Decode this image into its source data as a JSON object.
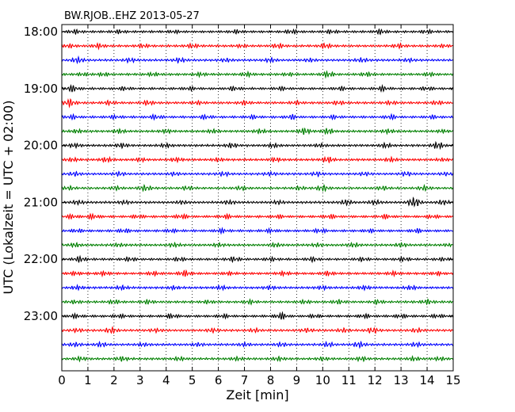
{
  "chart_data": {
    "type": "line",
    "title": "BW.RJOB..EHZ 2013-05-27",
    "xlabel": "Zeit  [min]",
    "ylabel": "UTC (Lokalzeit = UTC + 02:00)",
    "xlim": [
      0,
      15
    ],
    "x_ticks": [
      "0",
      "1",
      "2",
      "3",
      "4",
      "5",
      "6",
      "7",
      "8",
      "9",
      "10",
      "11",
      "12",
      "13",
      "14",
      "15"
    ],
    "y_tick_labels": [
      "18:00",
      "19:00",
      "20:00",
      "21:00",
      "22:00",
      "23:00"
    ],
    "grid": "vertical dotted",
    "series_colors": [
      "#000000",
      "#ff0000",
      "#0000ff",
      "#008000"
    ],
    "traces_per_hour": 4,
    "trace_count": 24,
    "trace_start_times": [
      "18:00",
      "18:15",
      "18:30",
      "18:45",
      "19:00",
      "19:15",
      "19:30",
      "19:45",
      "20:00",
      "20:15",
      "20:30",
      "20:45",
      "21:00",
      "21:15",
      "21:30",
      "21:45",
      "22:00",
      "22:15",
      "22:30",
      "22:45",
      "23:00",
      "23:15",
      "23:30",
      "23:45"
    ],
    "bursts": [
      [
        [
          0.5,
          0.6
        ],
        [
          2.2,
          0.5
        ],
        [
          4.3,
          0.4
        ],
        [
          6.7,
          0.5
        ],
        [
          8.8,
          0.6
        ],
        [
          10.3,
          0.5
        ],
        [
          12.2,
          0.7
        ],
        [
          14.0,
          0.5
        ]
      ],
      [
        [
          0.3,
          0.5
        ],
        [
          1.4,
          0.7
        ],
        [
          3.1,
          0.5
        ],
        [
          5.0,
          0.6
        ],
        [
          6.9,
          0.4
        ],
        [
          8.3,
          0.7
        ],
        [
          10.1,
          0.8
        ],
        [
          12.9,
          0.6
        ],
        [
          14.6,
          0.4
        ]
      ],
      [
        [
          0.6,
          0.9
        ],
        [
          2.6,
          0.6
        ],
        [
          4.5,
          0.7
        ],
        [
          6.3,
          0.5
        ],
        [
          8.0,
          0.6
        ],
        [
          9.5,
          0.5
        ],
        [
          11.5,
          0.6
        ],
        [
          13.3,
          0.5
        ]
      ],
      [
        [
          0.8,
          0.4
        ],
        [
          1.6,
          0.5
        ],
        [
          3.5,
          0.5
        ],
        [
          5.3,
          0.5
        ],
        [
          7.1,
          0.6
        ],
        [
          8.7,
          0.4
        ],
        [
          10.2,
          0.9
        ],
        [
          11.7,
          0.6
        ],
        [
          14.1,
          0.5
        ]
      ],
      [
        [
          0.4,
          1.0
        ],
        [
          2.4,
          0.5
        ],
        [
          4.9,
          0.5
        ],
        [
          6.6,
          0.6
        ],
        [
          8.4,
          0.5
        ],
        [
          10.7,
          0.5
        ],
        [
          12.3,
          0.7
        ],
        [
          14.0,
          0.5
        ]
      ],
      [
        [
          0.3,
          1.2
        ],
        [
          1.8,
          0.6
        ],
        [
          3.3,
          0.7
        ],
        [
          5.2,
          0.5
        ],
        [
          7.0,
          0.6
        ],
        [
          9.0,
          0.5
        ],
        [
          10.6,
          0.6
        ],
        [
          12.6,
          0.5
        ],
        [
          14.4,
          0.6
        ]
      ],
      [
        [
          0.4,
          0.6
        ],
        [
          2.0,
          0.5
        ],
        [
          3.6,
          0.7
        ],
        [
          5.5,
          0.6
        ],
        [
          7.3,
          0.5
        ],
        [
          8.8,
          0.7
        ],
        [
          10.4,
          0.5
        ],
        [
          12.6,
          0.7
        ],
        [
          14.2,
          0.5
        ]
      ],
      [
        [
          0.6,
          0.5
        ],
        [
          2.2,
          0.6
        ],
        [
          4.0,
          0.5
        ],
        [
          5.8,
          0.5
        ],
        [
          7.6,
          0.6
        ],
        [
          9.3,
          1.0
        ],
        [
          10.2,
          0.9
        ],
        [
          12.5,
          0.6
        ],
        [
          14.6,
          0.4
        ]
      ],
      [
        [
          0.5,
          0.6
        ],
        [
          2.3,
          0.7
        ],
        [
          4.0,
          0.6
        ],
        [
          6.5,
          0.7
        ],
        [
          8.1,
          0.6
        ],
        [
          9.9,
          0.5
        ],
        [
          12.4,
          0.7
        ],
        [
          14.4,
          1.1
        ]
      ],
      [
        [
          0.4,
          0.5
        ],
        [
          1.7,
          0.7
        ],
        [
          3.0,
          0.5
        ],
        [
          4.4,
          0.6
        ],
        [
          6.0,
          0.5
        ],
        [
          8.2,
          0.6
        ],
        [
          10.2,
          0.9
        ],
        [
          12.6,
          0.6
        ],
        [
          14.6,
          0.4
        ]
      ],
      [
        [
          0.5,
          0.6
        ],
        [
          2.2,
          0.6
        ],
        [
          4.3,
          0.5
        ],
        [
          6.2,
          0.6
        ],
        [
          8.0,
          0.5
        ],
        [
          9.8,
          0.6
        ],
        [
          11.6,
          0.5
        ],
        [
          13.2,
          0.6
        ],
        [
          14.7,
          0.4
        ]
      ],
      [
        [
          0.3,
          0.5
        ],
        [
          2.1,
          0.5
        ],
        [
          3.2,
          0.9
        ],
        [
          4.8,
          0.5
        ],
        [
          6.9,
          0.6
        ],
        [
          9.1,
          0.5
        ],
        [
          10.0,
          0.9
        ],
        [
          12.3,
          0.6
        ],
        [
          13.9,
          0.7
        ]
      ],
      [
        [
          0.6,
          0.6
        ],
        [
          2.4,
          0.5
        ],
        [
          4.6,
          0.5
        ],
        [
          6.4,
          0.6
        ],
        [
          8.3,
          0.5
        ],
        [
          10.9,
          0.8
        ],
        [
          12.0,
          0.7
        ],
        [
          13.5,
          1.6
        ],
        [
          14.6,
          0.7
        ]
      ],
      [
        [
          0.4,
          0.6
        ],
        [
          1.2,
          0.8
        ],
        [
          2.9,
          0.5
        ],
        [
          4.6,
          0.7
        ],
        [
          6.3,
          0.6
        ],
        [
          8.3,
          0.5
        ],
        [
          10.3,
          0.6
        ],
        [
          12.4,
          0.6
        ],
        [
          14.2,
          0.5
        ]
      ],
      [
        [
          0.6,
          0.5
        ],
        [
          2.4,
          0.6
        ],
        [
          4.2,
          0.5
        ],
        [
          6.1,
          0.6
        ],
        [
          8.0,
          0.5
        ],
        [
          9.9,
          0.6
        ],
        [
          11.8,
          0.5
        ],
        [
          13.6,
          0.6
        ]
      ],
      [
        [
          0.5,
          0.6
        ],
        [
          2.2,
          0.5
        ],
        [
          4.3,
          0.6
        ],
        [
          6.0,
          0.5
        ],
        [
          8.2,
          0.6
        ],
        [
          9.8,
          0.5
        ],
        [
          11.2,
          0.6
        ],
        [
          13.0,
          0.6
        ],
        [
          14.8,
          0.3
        ]
      ],
      [
        [
          0.7,
          0.9
        ],
        [
          2.6,
          0.6
        ],
        [
          4.5,
          0.6
        ],
        [
          6.6,
          0.7
        ],
        [
          8.0,
          0.5
        ],
        [
          9.6,
          0.6
        ],
        [
          11.5,
          0.5
        ],
        [
          13.1,
          0.6
        ],
        [
          14.6,
          0.4
        ]
      ],
      [
        [
          0.5,
          0.5
        ],
        [
          1.6,
          0.6
        ],
        [
          3.5,
          0.6
        ],
        [
          4.7,
          0.9
        ],
        [
          6.4,
          0.5
        ],
        [
          8.5,
          0.6
        ],
        [
          10.2,
          0.6
        ],
        [
          12.7,
          0.6
        ],
        [
          14.4,
          0.5
        ]
      ],
      [
        [
          0.6,
          0.6
        ],
        [
          2.3,
          0.6
        ],
        [
          4.3,
          0.5
        ],
        [
          6.1,
          0.6
        ],
        [
          8.0,
          0.5
        ],
        [
          10.0,
          0.5
        ],
        [
          11.6,
          0.6
        ],
        [
          13.4,
          0.6
        ]
      ],
      [
        [
          0.5,
          0.5
        ],
        [
          2.0,
          0.6
        ],
        [
          3.3,
          0.6
        ],
        [
          5.6,
          0.5
        ],
        [
          7.2,
          0.6
        ],
        [
          9.3,
          0.5
        ],
        [
          10.6,
          0.6
        ],
        [
          12.1,
          0.6
        ],
        [
          14.0,
          0.7
        ]
      ],
      [
        [
          0.5,
          0.6
        ],
        [
          2.2,
          0.5
        ],
        [
          4.2,
          0.7
        ],
        [
          6.2,
          0.5
        ],
        [
          8.4,
          1.1
        ],
        [
          9.7,
          0.5
        ],
        [
          11.6,
          0.6
        ],
        [
          13.0,
          0.6
        ],
        [
          14.4,
          0.5
        ]
      ],
      [
        [
          0.6,
          0.5
        ],
        [
          1.9,
          0.9
        ],
        [
          3.6,
          0.5
        ],
        [
          5.8,
          0.6
        ],
        [
          7.4,
          0.5
        ],
        [
          9.4,
          0.6
        ],
        [
          10.8,
          0.6
        ],
        [
          11.9,
          0.9
        ],
        [
          13.6,
          0.6
        ]
      ],
      [
        [
          0.5,
          0.6
        ],
        [
          1.5,
          0.7
        ],
        [
          3.1,
          0.5
        ],
        [
          5.2,
          0.5
        ],
        [
          7.0,
          0.5
        ],
        [
          8.4,
          0.6
        ],
        [
          10.2,
          0.7
        ],
        [
          11.4,
          0.9
        ],
        [
          13.6,
          0.6
        ]
      ],
      [
        [
          0.7,
          0.6
        ],
        [
          2.3,
          0.7
        ],
        [
          4.5,
          0.5
        ],
        [
          6.7,
          0.5
        ],
        [
          8.3,
          0.6
        ],
        [
          10.0,
          0.5
        ],
        [
          11.5,
          0.6
        ],
        [
          13.5,
          0.6
        ],
        [
          14.5,
          0.5
        ]
      ]
    ]
  }
}
